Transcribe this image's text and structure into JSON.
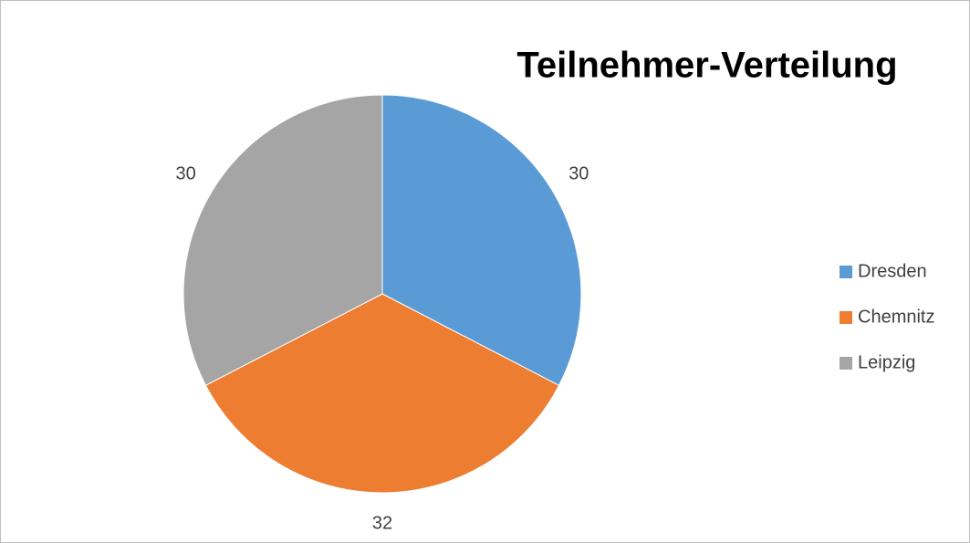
{
  "chart_data": {
    "type": "pie",
    "title": "Teilnehmer-Verteilung",
    "categories": [
      "Dresden",
      "Chemnitz",
      "Leipzig"
    ],
    "values": [
      30,
      32,
      30
    ],
    "colors": [
      "#5b9bd5",
      "#ed7d31",
      "#a5a5a5"
    ],
    "legend": "right"
  }
}
